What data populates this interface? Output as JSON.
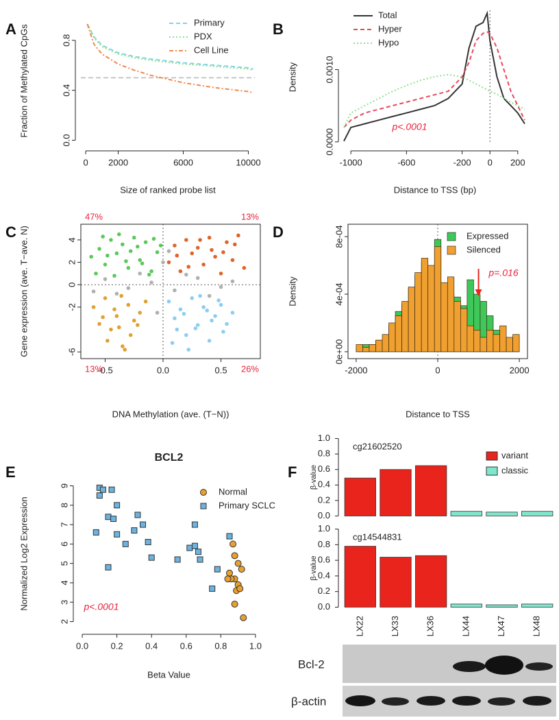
{
  "chart_data": [
    {
      "type": "line",
      "panel": "A",
      "xlabel": "Size of ranked probe list",
      "ylabel": "Fraction of Methylated CpGs",
      "x": [
        100,
        500,
        1000,
        2000,
        3000,
        4000,
        6000,
        8000,
        10000,
        10300
      ],
      "series": [
        {
          "name": "Primary",
          "color": "#7fd3e6",
          "linestyle": "dashed",
          "values": [
            0.93,
            0.83,
            0.76,
            0.7,
            0.67,
            0.65,
            0.62,
            0.6,
            0.58,
            0.57
          ]
        },
        {
          "name": "PDX",
          "color": "#8ddf8d",
          "linestyle": "dotted",
          "values": [
            0.93,
            0.82,
            0.75,
            0.69,
            0.66,
            0.64,
            0.61,
            0.59,
            0.57,
            0.56
          ]
        },
        {
          "name": "Cell Line",
          "color": "#f0884a",
          "linestyle": "dotdash",
          "values": [
            0.93,
            0.77,
            0.69,
            0.61,
            0.56,
            0.52,
            0.46,
            0.42,
            0.39,
            0.38
          ]
        }
      ],
      "hlines": [
        0.5
      ],
      "xlim": [
        -300,
        10400
      ],
      "ylim": [
        -0.03,
        0.98
      ],
      "xticks": [
        0,
        2000,
        6000,
        10000
      ],
      "yticks": [
        {
          "value": 0,
          "label": "0.0"
        },
        {
          "value": 0.4,
          "label": "0.4"
        },
        {
          "value": 0.8,
          "label": "0.8"
        }
      ],
      "legend": "top-right",
      "frame": false
    },
    {
      "type": "line",
      "panel": "B",
      "xlabel": "Distance to TSS (bp)",
      "ylabel": "Density",
      "x": [
        -1050,
        -1000,
        -900,
        -800,
        -700,
        -600,
        -500,
        -400,
        -300,
        -200,
        -150,
        -100,
        -50,
        -20,
        0,
        50,
        100,
        150,
        200,
        250
      ],
      "series": [
        {
          "name": "Total",
          "color": "#333333",
          "linestyle": "solid",
          "values": [
            1e-05,
            0.0002,
            0.00025,
            0.0003,
            0.00035,
            0.0004,
            0.00045,
            0.0005,
            0.0006,
            0.0008,
            0.0013,
            0.0016,
            0.00165,
            0.00178,
            0.0014,
            0.0009,
            0.0006,
            0.0005,
            0.0004,
            0.00025
          ]
        },
        {
          "name": "Hyper",
          "color": "#e8475a",
          "linestyle": "dashed",
          "values": [
            0.0002,
            0.0003,
            0.0004,
            0.00045,
            0.0005,
            0.00055,
            0.0006,
            0.00065,
            0.0007,
            0.0009,
            0.0011,
            0.0014,
            0.0015,
            0.00152,
            0.0015,
            0.0013,
            0.001,
            0.0007,
            0.0005,
            0.0003
          ]
        },
        {
          "name": "Hypo",
          "color": "#90e090",
          "linestyle": "dotted",
          "values": [
            0.0002,
            0.0004,
            0.0005,
            0.0006,
            0.0007,
            0.00078,
            0.00085,
            0.0009,
            0.00093,
            0.0009,
            0.00085,
            0.0008,
            0.00075,
            0.00072,
            0.0007,
            0.00066,
            0.0006,
            0.00055,
            0.0005,
            0.00045
          ]
        }
      ],
      "vlines": [
        0
      ],
      "annotation": "p<.0001",
      "xlim": [
        -1050,
        260
      ],
      "ylim": [
        -3e-05,
        0.00182
      ],
      "xticks": [
        -1000,
        -600,
        -200,
        0,
        200
      ],
      "yticks": [
        {
          "value": 0,
          "label": "0.0000"
        },
        {
          "value": 0.001,
          "label": "0.0010"
        }
      ],
      "legend": "top-left",
      "frame": false
    },
    {
      "type": "scatter",
      "panel": "C",
      "xlabel": "DNA Methylation (ave. (T−N))",
      "ylabel": "Gene expression (ave. T−ave. N)",
      "series": [
        {
          "color": "#b0b0b0",
          "x": [
            -0.5,
            -0.3,
            -0.1,
            0.1,
            0.3,
            0.5,
            -0.4,
            -0.2,
            0.2,
            0.4,
            0.0,
            -0.05,
            0.05,
            -0.6,
            0.6
          ],
          "values": [
            0.5,
            -0.3,
            0.2,
            -0.5,
            0.6,
            -0.2,
            -0.8,
            1.0,
            0.9,
            -1.0,
            2.0,
            -2.5,
            3.0,
            -0.6,
            0.3
          ]
        },
        {
          "color": "#5cc85c",
          "x": [
            -0.62,
            -0.55,
            -0.5,
            -0.45,
            -0.4,
            -0.35,
            -0.3,
            -0.25,
            -0.2,
            -0.15,
            -0.1,
            -0.05,
            -0.58,
            -0.48,
            -0.38,
            -0.28,
            -0.18,
            -0.08,
            -0.42,
            -0.22,
            -0.32,
            -0.12,
            -0.52,
            -0.02
          ],
          "values": [
            2.5,
            3.2,
            1.8,
            4.0,
            2.8,
            3.6,
            1.5,
            4.2,
            2.2,
            3.8,
            1.2,
            2.9,
            1.0,
            2.6,
            4.5,
            3.0,
            1.9,
            4.1,
            0.8,
            3.4,
            2.1,
            0.9,
            4.3,
            3.5
          ]
        },
        {
          "color": "#e0642a",
          "x": [
            0.05,
            0.1,
            0.15,
            0.2,
            0.25,
            0.3,
            0.35,
            0.4,
            0.45,
            0.5,
            0.55,
            0.6,
            0.65,
            0.7,
            0.12,
            0.22,
            0.32,
            0.42,
            0.52,
            0.62
          ],
          "values": [
            2.0,
            3.5,
            1.2,
            4.0,
            2.8,
            3.3,
            1.8,
            4.2,
            2.5,
            1.0,
            3.8,
            2.2,
            4.4,
            1.5,
            2.6,
            1.6,
            4.0,
            3.1,
            2.9,
            3.6
          ]
        },
        {
          "color": "#e0a030",
          "x": [
            -0.6,
            -0.55,
            -0.5,
            -0.45,
            -0.4,
            -0.35,
            -0.3,
            -0.25,
            -0.2,
            -0.15,
            -0.48,
            -0.38,
            -0.28,
            -0.42,
            -0.33,
            -0.52,
            -0.22,
            -0.36
          ],
          "values": [
            -2.0,
            -3.5,
            -1.2,
            -4.0,
            -2.8,
            -5.5,
            -1.8,
            -3.2,
            -2.5,
            -1.5,
            -5.0,
            -3.8,
            -4.5,
            -2.2,
            -5.8,
            -2.9,
            -3.6,
            -1.0
          ]
        },
        {
          "color": "#8ccdf0",
          "x": [
            0.05,
            0.1,
            0.15,
            0.2,
            0.25,
            0.3,
            0.35,
            0.4,
            0.45,
            0.5,
            0.55,
            0.6,
            0.12,
            0.22,
            0.32,
            0.42,
            0.52,
            0.18,
            0.28,
            0.38,
            0.08,
            0.48
          ],
          "values": [
            -1.5,
            -3.0,
            -2.2,
            -4.5,
            -1.2,
            -3.6,
            -2.0,
            -5.0,
            -2.8,
            -1.8,
            -3.5,
            -2.5,
            -4.0,
            -5.8,
            -1.0,
            -3.2,
            -4.2,
            -2.6,
            -3.9,
            -2.3,
            -5.2,
            -1.4
          ]
        }
      ],
      "hlines": [
        0
      ],
      "vlines": [
        0
      ],
      "corner_labels": [
        "47%",
        "13%",
        "13%",
        "26%"
      ],
      "xlim": [
        -0.71,
        0.84
      ],
      "ylim": [
        -6.6,
        5.4
      ],
      "xticks": [
        -0.5,
        {
          "value": 0,
          "label": "0.0"
        },
        0.5
      ],
      "yticks": [
        -6,
        -2,
        0,
        2,
        4
      ],
      "frame": true
    },
    {
      "type": "histogram",
      "panel": "D",
      "xlabel": "Distance to TSS",
      "ylabel": "Density",
      "bins": [
        -2000,
        -1840,
        -1680,
        -1520,
        -1360,
        -1200,
        -1040,
        -880,
        -720,
        -560,
        -400,
        -240,
        -80,
        80,
        240,
        400,
        560,
        720,
        880,
        1040,
        1200,
        1360,
        1520,
        1680,
        1840,
        2000
      ],
      "series": [
        {
          "name": "Expressed",
          "color": "#3fc85a",
          "values": [
            3e-05,
            5e-05,
            5e-05,
            8e-05,
            8e-05,
            0.00018,
            0.00028,
            0.00033,
            0.00044,
            0.00053,
            0.00062,
            0.00055,
            0.00078,
            0.00045,
            0.0004,
            0.00038,
            0.00032,
            0.0005,
            0.0004,
            0.00035,
            0.00025,
            0.00015,
            0.0001,
            8e-05,
            0.0001
          ]
        },
        {
          "name": "Silenced",
          "color": "#f0a030",
          "values": [
            5e-05,
            3e-05,
            5e-05,
            8e-05,
            0.00012,
            0.0002,
            0.00025,
            0.00035,
            0.00045,
            0.00055,
            0.00065,
            0.0006,
            0.00073,
            0.00048,
            0.00052,
            0.00035,
            0.0003,
            0.00018,
            0.00015,
            0.0001,
            0.00015,
            0.00012,
            0.00018,
            0.0001,
            0.00012
          ]
        }
      ],
      "vlines": [
        0
      ],
      "annotation": "p=.016",
      "arrow_x": 1000,
      "xlim": [
        -2200,
        2200
      ],
      "ylim": [
        -4.8e-05,
        0.000886
      ],
      "xticks": [
        -2000,
        0,
        2000
      ],
      "yticks": [
        {
          "value": 0,
          "label": "0e+00"
        },
        {
          "value": 0.0004,
          "label": "4e-04"
        },
        {
          "value": 0.0008,
          "label": "8e-04"
        }
      ],
      "legend": "top-right",
      "frame": true
    },
    {
      "type": "scatter",
      "panel": "E",
      "title": "BCL2",
      "xlabel": "Beta Value",
      "ylabel": "Normalized Log2 Expression",
      "series": [
        {
          "name": "Normal",
          "color": "#e8a030",
          "marker": "circle",
          "x": [
            0.87,
            0.88,
            0.9,
            0.85,
            0.88,
            0.9,
            0.92,
            0.86,
            0.89,
            0.91,
            0.88,
            0.93,
            0.84
          ],
          "values": [
            6.0,
            5.4,
            5.0,
            4.5,
            4.2,
            3.9,
            4.7,
            4.2,
            3.6,
            3.7,
            2.9,
            2.2,
            4.2
          ]
        },
        {
          "name": "Primary SCLC",
          "color": "#6cb4e0",
          "marker": "square",
          "x": [
            0.1,
            0.1,
            0.12,
            0.17,
            0.2,
            0.08,
            0.15,
            0.18,
            0.25,
            0.3,
            0.32,
            0.35,
            0.38,
            0.4,
            0.15,
            0.2,
            0.55,
            0.62,
            0.65,
            0.65,
            0.67,
            0.68,
            0.75,
            0.78,
            0.85
          ],
          "values": [
            8.9,
            8.5,
            8.8,
            8.8,
            8.0,
            6.6,
            7.4,
            7.3,
            6.0,
            6.7,
            7.5,
            7.0,
            6.1,
            5.3,
            4.8,
            6.5,
            5.2,
            5.8,
            7.0,
            5.9,
            5.6,
            5.2,
            3.7,
            4.7,
            6.4
          ]
        }
      ],
      "annotation": "p<.0001",
      "xlim": [
        -0.02,
        1.02
      ],
      "ylim": [
        1.7,
        9.3
      ],
      "xticks": [
        {
          "value": 0,
          "label": "0.0"
        },
        {
          "value": 0.2,
          "label": "0.2"
        },
        {
          "value": 0.4,
          "label": "0.4"
        },
        {
          "value": 0.6,
          "label": "0.6"
        },
        {
          "value": 0.8,
          "label": "0.8"
        },
        {
          "value": 1,
          "label": "1.0"
        }
      ],
      "yticks": [
        2,
        3,
        4,
        5,
        6,
        7,
        8,
        9
      ],
      "legend": "top-right",
      "frame": false
    },
    {
      "type": "bar",
      "panel": "F",
      "title": "cg21602520",
      "ylabel": "β-value",
      "groups": [
        "variant",
        "variant",
        "variant",
        "classic",
        "classic",
        "classic"
      ],
      "values": [
        0.49,
        0.6,
        0.65,
        0.06,
        0.05,
        0.06
      ],
      "ylim": [
        -0.04,
        1.04
      ],
      "yticks": [
        {
          "value": 0,
          "label": "0.0"
        },
        {
          "value": 0.2,
          "label": "0.2"
        },
        {
          "value": 0.4,
          "label": "0.4"
        },
        {
          "value": 0.6,
          "label": "0.6"
        },
        {
          "value": 0.8,
          "label": "0.8"
        },
        {
          "value": 1,
          "label": "1.0"
        }
      ],
      "legend": [
        {
          "name": "variant",
          "color": "#e8241c"
        },
        {
          "name": "classic",
          "color": "#80e6cc"
        }
      ]
    },
    {
      "type": "bar",
      "title": "cg14544831",
      "ylabel": "β-value",
      "categories": [
        "LX22",
        "LX33",
        "LX36",
        "LX44",
        "LX47",
        "LX48"
      ],
      "groups": [
        "variant",
        "variant",
        "variant",
        "classic",
        "classic",
        "classic"
      ],
      "values": [
        0.78,
        0.64,
        0.66,
        0.04,
        0.03,
        0.04
      ],
      "ylim": [
        -0.04,
        1.04
      ],
      "yticks": [
        {
          "value": 0,
          "label": "0.0"
        },
        {
          "value": 0.2,
          "label": "0.2"
        },
        {
          "value": 0.4,
          "label": "0.4"
        },
        {
          "value": 0.6,
          "label": "0.6"
        },
        {
          "value": 0.8,
          "label": "0.8"
        },
        {
          "value": 1,
          "label": "1.0"
        }
      ]
    }
  ],
  "blot": {
    "labels": [
      "Bcl-2",
      "β-actin"
    ]
  }
}
